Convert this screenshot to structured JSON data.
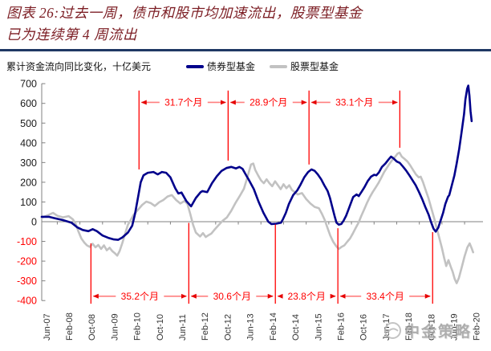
{
  "header": {
    "title_line1": "图表 26:过去一周，债市和股市均加速流出，股票型基金",
    "title_line2": "已为连续第 4 周流出"
  },
  "watermark": {
    "text": "中金策略"
  },
  "chart_data": {
    "type": "line",
    "unit_label": "累计资金流向同比变化，十亿美元",
    "colors": {
      "bond": "#00008B",
      "equity": "#C2C2C2",
      "annotation_red": "#FF0000",
      "arrow_shaft": "#FF7F7F",
      "axis_gray": "#808080",
      "title_maroon": "#7C1E24",
      "divider_navy": "#1F3864"
    },
    "y_axis": {
      "min": -400,
      "max": 700,
      "step": 100,
      "tick_labels": [
        "700",
        "600",
        "500",
        "400",
        "300",
        "200",
        "100",
        "0",
        "-100",
        "-200",
        "-300",
        "-400"
      ],
      "negative_tick_color": "#FF0000"
    },
    "x_axis": {
      "tick_labels": [
        "Jun-07",
        "Feb-08",
        "Oct-08",
        "Jun-09",
        "Feb-10",
        "Oct-10",
        "Jun-11",
        "Feb-12",
        "Oct-12",
        "Jun-13",
        "Feb-14",
        "Oct-14",
        "Jun-15",
        "Feb-16",
        "Oct-16",
        "Jun-17",
        "Feb-18",
        "Oct-18",
        "Jun-19",
        "Feb-20"
      ],
      "tick_step_months": 8,
      "axis_start_month": -1.5,
      "axis_end_month": 154.5
    },
    "series": [
      {
        "name": "债券型基金",
        "key": "bond",
        "color": "#00008B",
        "points": [
          [
            -1.5,
            25
          ],
          [
            1,
            25
          ],
          [
            3,
            18
          ],
          [
            6,
            8
          ],
          [
            9,
            -5
          ],
          [
            11,
            -28
          ],
          [
            13,
            -42
          ],
          [
            15,
            -48
          ],
          [
            16.5,
            -38
          ],
          [
            18,
            -48
          ],
          [
            20,
            -70
          ],
          [
            22,
            -82
          ],
          [
            24,
            -90
          ],
          [
            25.5,
            -92
          ],
          [
            27,
            -80
          ],
          [
            29,
            -55
          ],
          [
            30.5,
            -20
          ],
          [
            31.5,
            40
          ],
          [
            32.5,
            120
          ],
          [
            33.5,
            200
          ],
          [
            34.5,
            235
          ],
          [
            36,
            248
          ],
          [
            38,
            252
          ],
          [
            39.5,
            240
          ],
          [
            41,
            252
          ],
          [
            42.5,
            248
          ],
          [
            44,
            225
          ],
          [
            45.7,
            170
          ],
          [
            46.8,
            143
          ],
          [
            47.9,
            148
          ],
          [
            49.6,
            105
          ],
          [
            51.3,
            78
          ],
          [
            53,
            120
          ],
          [
            54.7,
            150
          ],
          [
            55.3,
            155
          ],
          [
            57,
            150
          ],
          [
            58.7,
            195
          ],
          [
            60.4,
            230
          ],
          [
            62.1,
            258
          ],
          [
            63.8,
            272
          ],
          [
            65.5,
            278
          ],
          [
            67.2,
            270
          ],
          [
            68.4,
            278
          ],
          [
            69.5,
            268
          ],
          [
            70.6,
            240
          ],
          [
            71.8,
            210
          ],
          [
            73.5,
            165
          ],
          [
            75.2,
            100
          ],
          [
            76.9,
            45
          ],
          [
            78.6,
            0
          ],
          [
            79.7,
            -12
          ],
          [
            81.4,
            -10
          ],
          [
            83.1,
            -5
          ],
          [
            83.7,
            10
          ],
          [
            84.8,
            45
          ],
          [
            85.9,
            90
          ],
          [
            87.4,
            135
          ],
          [
            88.8,
            158
          ],
          [
            89.9,
            185
          ],
          [
            91.3,
            225
          ],
          [
            92.7,
            252
          ],
          [
            93.9,
            265
          ],
          [
            95,
            258
          ],
          [
            96.1,
            240
          ],
          [
            97.3,
            215
          ],
          [
            98.4,
            185
          ],
          [
            99.6,
            155
          ],
          [
            100.4,
            120
          ],
          [
            101.2,
            75
          ],
          [
            102.1,
            25
          ],
          [
            102.7,
            -5
          ],
          [
            103.5,
            -15
          ],
          [
            104.4,
            -12
          ],
          [
            105.2,
            5
          ],
          [
            106.1,
            30
          ],
          [
            106.9,
            60
          ],
          [
            107.8,
            95
          ],
          [
            108.6,
            125
          ],
          [
            109.8,
            138
          ],
          [
            110.6,
            130
          ],
          [
            111.5,
            150
          ],
          [
            112.6,
            175
          ],
          [
            113.7,
            205
          ],
          [
            114.9,
            228
          ],
          [
            116,
            238
          ],
          [
            116.8,
            235
          ],
          [
            117.7,
            250
          ],
          [
            118.8,
            278
          ],
          [
            120,
            295
          ],
          [
            121.1,
            315
          ],
          [
            122,
            330
          ],
          [
            122.8,
            322
          ],
          [
            124,
            305
          ],
          [
            125.1,
            298
          ],
          [
            126.2,
            280
          ],
          [
            127.3,
            260
          ],
          [
            128.5,
            235
          ],
          [
            129.6,
            210
          ],
          [
            130.7,
            185
          ],
          [
            131.9,
            150
          ],
          [
            133,
            115
          ],
          [
            134.1,
            75
          ],
          [
            135.3,
            35
          ],
          [
            136.1,
            0
          ],
          [
            137,
            -35
          ],
          [
            137.8,
            -50
          ],
          [
            138.7,
            -30
          ],
          [
            139.5,
            5
          ],
          [
            140.4,
            45
          ],
          [
            141.2,
            90
          ],
          [
            142.1,
            125
          ],
          [
            142.6,
            135
          ],
          [
            143.5,
            185
          ],
          [
            144.4,
            235
          ],
          [
            145.2,
            295
          ],
          [
            146.1,
            370
          ],
          [
            146.9,
            450
          ],
          [
            147.8,
            545
          ],
          [
            148.3,
            620
          ],
          [
            148.9,
            675
          ],
          [
            149.3,
            690
          ],
          [
            149.7,
            640
          ],
          [
            150.1,
            560
          ],
          [
            150.5,
            510
          ]
        ]
      },
      {
        "name": "股票型基金",
        "key": "equity",
        "color": "#C2C2C2",
        "points": [
          [
            -1.5,
            20
          ],
          [
            1,
            35
          ],
          [
            2.5,
            45
          ],
          [
            4,
            30
          ],
          [
            6,
            22
          ],
          [
            8,
            28
          ],
          [
            9.5,
            12
          ],
          [
            10.5,
            -10
          ],
          [
            11.5,
            -50
          ],
          [
            12.5,
            -85
          ],
          [
            13.5,
            -105
          ],
          [
            14.5,
            -120
          ],
          [
            15.5,
            -128
          ],
          [
            16.5,
            -112
          ],
          [
            17.5,
            -130
          ],
          [
            18.5,
            -118
          ],
          [
            19.5,
            -138
          ],
          [
            20.5,
            -120
          ],
          [
            21.5,
            -145
          ],
          [
            22.5,
            -132
          ],
          [
            23.5,
            -150
          ],
          [
            24.5,
            -162
          ],
          [
            25.2,
            -172
          ],
          [
            26,
            -150
          ],
          [
            27,
            -108
          ],
          [
            28,
            -60
          ],
          [
            29,
            -15
          ],
          [
            29.8,
            5
          ],
          [
            31,
            35
          ],
          [
            32.5,
            60
          ],
          [
            34,
            85
          ],
          [
            35.5,
            102
          ],
          [
            37,
            95
          ],
          [
            38.5,
            80
          ],
          [
            40,
            98
          ],
          [
            41.5,
            110
          ],
          [
            43,
            128
          ],
          [
            44.5,
            135
          ],
          [
            46,
            110
          ],
          [
            47.5,
            92
          ],
          [
            49,
            105
          ],
          [
            50,
            90
          ],
          [
            51,
            40
          ],
          [
            52,
            -15
          ],
          [
            53,
            -55
          ],
          [
            54.5,
            -75
          ],
          [
            55.5,
            -58
          ],
          [
            56.5,
            -78
          ],
          [
            57.5,
            -68
          ],
          [
            58.5,
            -60
          ],
          [
            59.5,
            -42
          ],
          [
            61,
            -18
          ],
          [
            62.5,
            5
          ],
          [
            64,
            22
          ],
          [
            65.5,
            55
          ],
          [
            67,
            95
          ],
          [
            68.5,
            130
          ],
          [
            70,
            168
          ],
          [
            71,
            215
          ],
          [
            71.8,
            255
          ],
          [
            72.5,
            290
          ],
          [
            73.3,
            295
          ],
          [
            74,
            262
          ],
          [
            75,
            235
          ],
          [
            76,
            210
          ],
          [
            77,
            195
          ],
          [
            78,
            215
          ],
          [
            79,
            195
          ],
          [
            80,
            180
          ],
          [
            81,
            205
          ],
          [
            82,
            185
          ],
          [
            83,
            165
          ],
          [
            84,
            190
          ],
          [
            85,
            170
          ],
          [
            86,
            185
          ],
          [
            87,
            160
          ],
          [
            88,
            150
          ],
          [
            89,
            138
          ],
          [
            90.5,
            145
          ],
          [
            92,
            115
          ],
          [
            93.5,
            92
          ],
          [
            95,
            75
          ],
          [
            96.5,
            68
          ],
          [
            97.5,
            42
          ],
          [
            98.5,
            10
          ],
          [
            99.5,
            -30
          ],
          [
            100.5,
            -70
          ],
          [
            101.5,
            -100
          ],
          [
            102.5,
            -122
          ],
          [
            103.5,
            -138
          ],
          [
            104.5,
            -128
          ],
          [
            105.5,
            -120
          ],
          [
            106.5,
            -102
          ],
          [
            107.5,
            -85
          ],
          [
            108.5,
            -60
          ],
          [
            109.5,
            -32
          ],
          [
            110.5,
            -5
          ],
          [
            111.5,
            30
          ],
          [
            112.5,
            62
          ],
          [
            113.5,
            95
          ],
          [
            114.5,
            125
          ],
          [
            115.5,
            150
          ],
          [
            116.5,
            172
          ],
          [
            117.5,
            195
          ],
          [
            118.5,
            222
          ],
          [
            119.5,
            250
          ],
          [
            120.5,
            272
          ],
          [
            121.5,
            295
          ],
          [
            122.5,
            315
          ],
          [
            123.5,
            330
          ],
          [
            124.3,
            345
          ],
          [
            125,
            350
          ],
          [
            125.8,
            330
          ],
          [
            126.8,
            318
          ],
          [
            127.8,
            305
          ],
          [
            128.8,
            285
          ],
          [
            129.8,
            262
          ],
          [
            130.8,
            240
          ],
          [
            131.8,
            225
          ],
          [
            132.5,
            228
          ],
          [
            133.3,
            200
          ],
          [
            134.2,
            162
          ],
          [
            135.2,
            120
          ],
          [
            136.2,
            70
          ],
          [
            137.2,
            20
          ],
          [
            138,
            -25
          ],
          [
            139,
            -80
          ],
          [
            140,
            -135
          ],
          [
            140.8,
            -185
          ],
          [
            141.5,
            -225
          ],
          [
            142.3,
            -195
          ],
          [
            143,
            -225
          ],
          [
            143.8,
            -255
          ],
          [
            144.5,
            -290
          ],
          [
            145.2,
            -312
          ],
          [
            146,
            -285
          ],
          [
            147,
            -230
          ],
          [
            148,
            -175
          ],
          [
            149,
            -130
          ],
          [
            149.8,
            -110
          ],
          [
            150.5,
            -135
          ],
          [
            151,
            -155
          ]
        ]
      }
    ],
    "cycle_annotations": {
      "top": {
        "arrow_value": 605,
        "line_top_value": 665,
        "labels": [
          "31.7个月",
          "28.9个月",
          "33.1个月"
        ],
        "boundaries": [
          {
            "month": 32.9,
            "line_end_value": 265
          },
          {
            "month": 64.4,
            "line_end_value": 310
          },
          {
            "month": 93.0,
            "line_end_value": 290
          },
          {
            "month": 125.1,
            "line_end_value": 375
          }
        ]
      },
      "bottom": {
        "arrow_value": -378,
        "line_bottom_value": -416,
        "labels": [
          "35.2个月",
          "30.6个月",
          "23.8个月",
          "33.4个月"
        ],
        "boundaries": [
          {
            "month": 15.9,
            "line_start_value": -110
          },
          {
            "month": 50.5,
            "line_start_value": -6
          },
          {
            "month": 81.1,
            "line_start_value": -14
          },
          {
            "month": 103.2,
            "line_start_value": -33
          },
          {
            "month": 136.7,
            "line_start_value": -53
          }
        ]
      }
    }
  }
}
